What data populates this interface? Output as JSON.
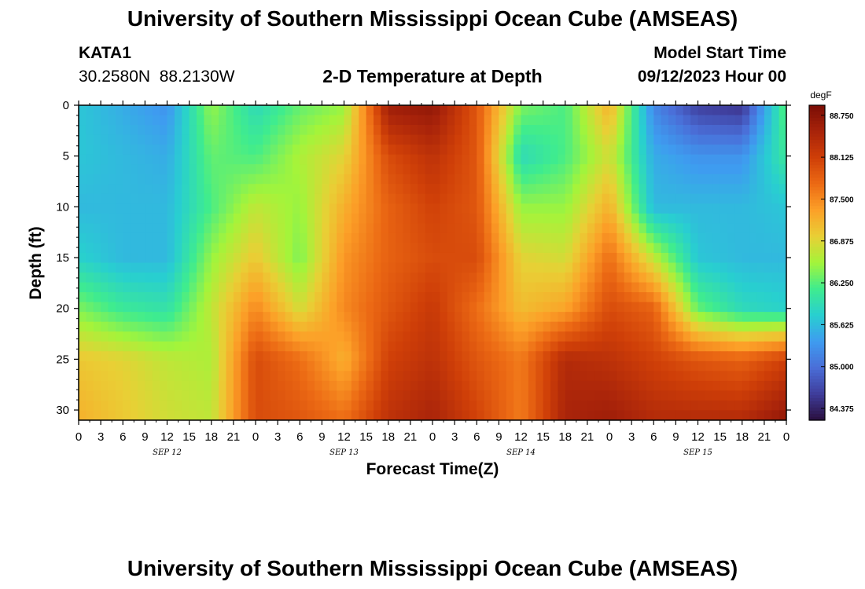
{
  "page": {
    "title_top": "University of Southern Mississippi Ocean Cube (AMSEAS)",
    "title_bottom": "University of Southern Mississippi Ocean Cube (AMSEAS)",
    "station_id": "KATA1",
    "station_coords": "30.2580N  88.2130W",
    "plot_title": "2-D Temperature at Depth",
    "model_start_label": "Model Start Time",
    "model_start_value": "09/12/2023 Hour 00"
  },
  "chart_data": {
    "type": "heatmap",
    "title": "2-D Temperature at Depth",
    "xlabel": "Forecast Time(Z)",
    "ylabel": "Depth (ft)",
    "x_hour_ticks": [
      "0",
      "3",
      "6",
      "9",
      "12",
      "15",
      "18",
      "21",
      "0",
      "3",
      "6",
      "9",
      "12",
      "15",
      "18",
      "21",
      "0",
      "3",
      "6",
      "9",
      "12",
      "15",
      "18",
      "21",
      "0",
      "3",
      "6",
      "9",
      "12",
      "15",
      "18",
      "21",
      "0"
    ],
    "x_date_labels": [
      "SEP 12",
      "SEP 13",
      "SEP 14",
      "SEP 15"
    ],
    "x_range_hours": [
      0,
      96
    ],
    "y_ticks": [
      "0",
      "5",
      "10",
      "15",
      "20",
      "25",
      "30"
    ],
    "y_range_ft": [
      0,
      31
    ],
    "colorbar": {
      "unit": "degF",
      "ticks": [
        "88.750",
        "88.125",
        "87.500",
        "86.875",
        "86.250",
        "85.625",
        "85.000",
        "84.375"
      ],
      "range": [
        84.2,
        88.9
      ],
      "colors": [
        "#2a0f3e",
        "#3f3d9b",
        "#4a6ed8",
        "#3e9cf0",
        "#28cfd0",
        "#3fec8e",
        "#a4f43a",
        "#e9cf35",
        "#fca028",
        "#ec6a14",
        "#cf3f08",
        "#a8230a",
        "#7a0d05"
      ]
    },
    "temperature_field": {
      "x_hours": [
        0,
        6,
        12,
        18,
        24,
        30,
        36,
        42,
        48,
        54,
        60,
        66,
        72,
        78,
        84,
        90,
        96
      ],
      "depth_ft": [
        0,
        5,
        10,
        15,
        20,
        25,
        31
      ],
      "values_degF": [
        [
          85.7,
          85.5,
          85.3,
          86.5,
          85.9,
          86.3,
          86.5,
          88.6,
          88.7,
          87.9,
          86.4,
          86.2,
          87.2,
          85.2,
          84.6,
          84.5,
          86.3
        ],
        [
          85.7,
          85.6,
          85.5,
          86.3,
          86.2,
          86.6,
          86.9,
          88.0,
          88.3,
          87.9,
          85.9,
          86.2,
          86.8,
          85.5,
          85.3,
          85.3,
          86.1
        ],
        [
          85.6,
          85.6,
          85.6,
          86.2,
          86.7,
          86.5,
          87.2,
          87.8,
          88.1,
          87.9,
          86.5,
          86.5,
          87.2,
          85.6,
          85.6,
          85.6,
          85.7
        ],
        [
          85.8,
          85.6,
          85.6,
          86.5,
          87.0,
          86.4,
          87.4,
          87.8,
          88.0,
          88.0,
          86.9,
          86.8,
          87.7,
          86.7,
          85.7,
          85.6,
          85.6
        ],
        [
          86.4,
          86.1,
          86.0,
          86.7,
          87.5,
          86.8,
          87.5,
          87.9,
          88.2,
          87.7,
          87.1,
          87.3,
          88.0,
          87.8,
          86.3,
          85.9,
          85.8
        ],
        [
          87.0,
          86.9,
          86.7,
          86.6,
          88.0,
          87.7,
          87.2,
          88.1,
          88.3,
          87.9,
          87.6,
          88.4,
          88.3,
          88.1,
          87.9,
          87.8,
          88.1
        ],
        [
          87.2,
          87.0,
          86.8,
          86.7,
          88.0,
          87.9,
          87.7,
          88.3,
          88.5,
          88.1,
          87.6,
          88.5,
          88.6,
          88.4,
          88.4,
          88.4,
          88.7
        ]
      ]
    }
  }
}
